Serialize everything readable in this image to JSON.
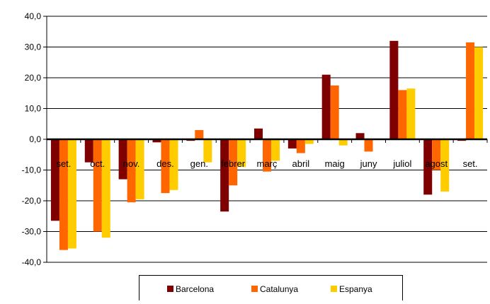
{
  "chart_data": {
    "type": "bar",
    "categories": [
      "set.",
      "oct.",
      "nov.",
      "des.",
      "gen.",
      "febrer",
      "març",
      "abril",
      "maig",
      "juny",
      "juliol",
      "agost",
      "set."
    ],
    "series": [
      {
        "name": "Barcelona",
        "color": "#7f0000",
        "values": [
          -26.5,
          -7.5,
          -13.0,
          -1.0,
          -0.5,
          -23.5,
          3.5,
          -3.0,
          21.0,
          2.0,
          32.0,
          -18.0,
          -0.5
        ]
      },
      {
        "name": "Catalunya",
        "color": "#ff6600",
        "values": [
          -36.0,
          -30.0,
          -20.5,
          -17.5,
          3.0,
          -15.0,
          -10.5,
          -4.5,
          17.5,
          -4.0,
          16.0,
          -10.0,
          31.5
        ]
      },
      {
        "name": "Espanya",
        "color": "#ffcc00",
        "values": [
          -35.5,
          -32.0,
          -19.5,
          -16.5,
          -7.5,
          -9.0,
          -7.0,
          -1.5,
          -2.0,
          0.0,
          16.5,
          -17.0,
          30.0
        ]
      }
    ],
    "y_ticks": [
      "40,0",
      "30,0",
      "20,0",
      "10,0",
      "0,0",
      "-10,0",
      "-20,0",
      "-30,0",
      "-40,0"
    ],
    "ylim": [
      -40,
      40
    ],
    "grid": true,
    "legend_position": "bottom"
  }
}
